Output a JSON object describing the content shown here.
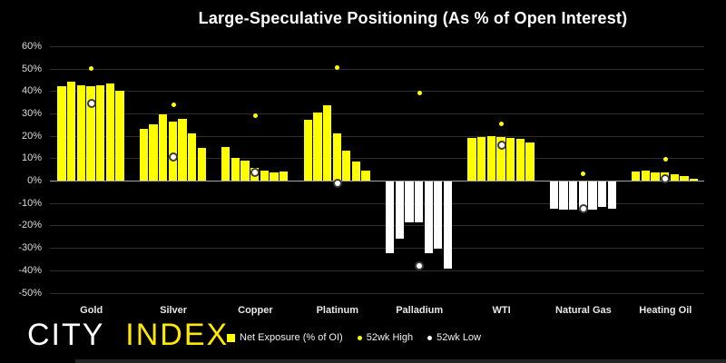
{
  "logo": {
    "city": "CITY",
    "index": "INDEX"
  },
  "legend": [
    {
      "label": "Net Exposure (% of OI)",
      "marker": "square",
      "color": "#ffff00"
    },
    {
      "label": "52wk High",
      "marker": "dot",
      "color": "#ffff00"
    },
    {
      "label": "52wk Low",
      "marker": "dot",
      "color": "#ffffff"
    }
  ],
  "colors": {
    "background": "#000000",
    "bar_positive": "#ffff00",
    "bar_negative": "#ffffff",
    "high_dot": "#ffff00",
    "low_dot": "#ffffff",
    "gridline": "#2e2e2e",
    "zero_line": "#a6a6a6",
    "text": "#e6e6e6",
    "logo_city": "#ffffff",
    "logo_index": "#ffe800"
  },
  "chart_data": {
    "type": "bar",
    "title": "Large-Speculative Positioning (As % of Open Interest)",
    "xlabel": "",
    "ylabel": "",
    "ylim": [
      -50,
      60
    ],
    "ytick_step": 10,
    "ytick_format": "percent",
    "grid": "horizontal",
    "legend_position": "bottom",
    "categories": [
      "Gold",
      "Silver",
      "Copper",
      "Platinum",
      "Palladium",
      "WTI",
      "Natural Gas",
      "Heating Oil"
    ],
    "series": [
      {
        "name": "Net Exposure (% of OI)",
        "note": "seven weekly bars per category, oldest to newest",
        "weekly_values": [
          [
            42,
            44,
            42.5,
            42,
            42.5,
            43.5,
            40
          ],
          [
            23,
            25,
            29.5,
            26.5,
            27.5,
            21,
            14.5
          ],
          [
            15,
            10,
            9,
            5.5,
            4.5,
            3.5,
            4
          ],
          [
            27,
            30.5,
            33.5,
            21,
            13.5,
            8.5,
            4.5
          ],
          [
            -32,
            -25.5,
            -18,
            -18,
            -32,
            -30,
            -39
          ],
          [
            19,
            19.5,
            20,
            19.5,
            19,
            18.5,
            17
          ],
          [
            -12,
            -12.5,
            -12.5,
            -13,
            -12.5,
            -11.5,
            -12
          ],
          [
            4,
            4.5,
            3.5,
            3.5,
            3,
            2,
            1
          ]
        ]
      },
      {
        "name": "52wk High",
        "values": [
          50,
          34,
          29,
          50.5,
          39,
          25.5,
          3,
          9.5
        ]
      },
      {
        "name": "52wk Low",
        "values": [
          34.5,
          10.5,
          3.5,
          -1,
          -38,
          16,
          -12.5,
          1
        ]
      }
    ]
  }
}
